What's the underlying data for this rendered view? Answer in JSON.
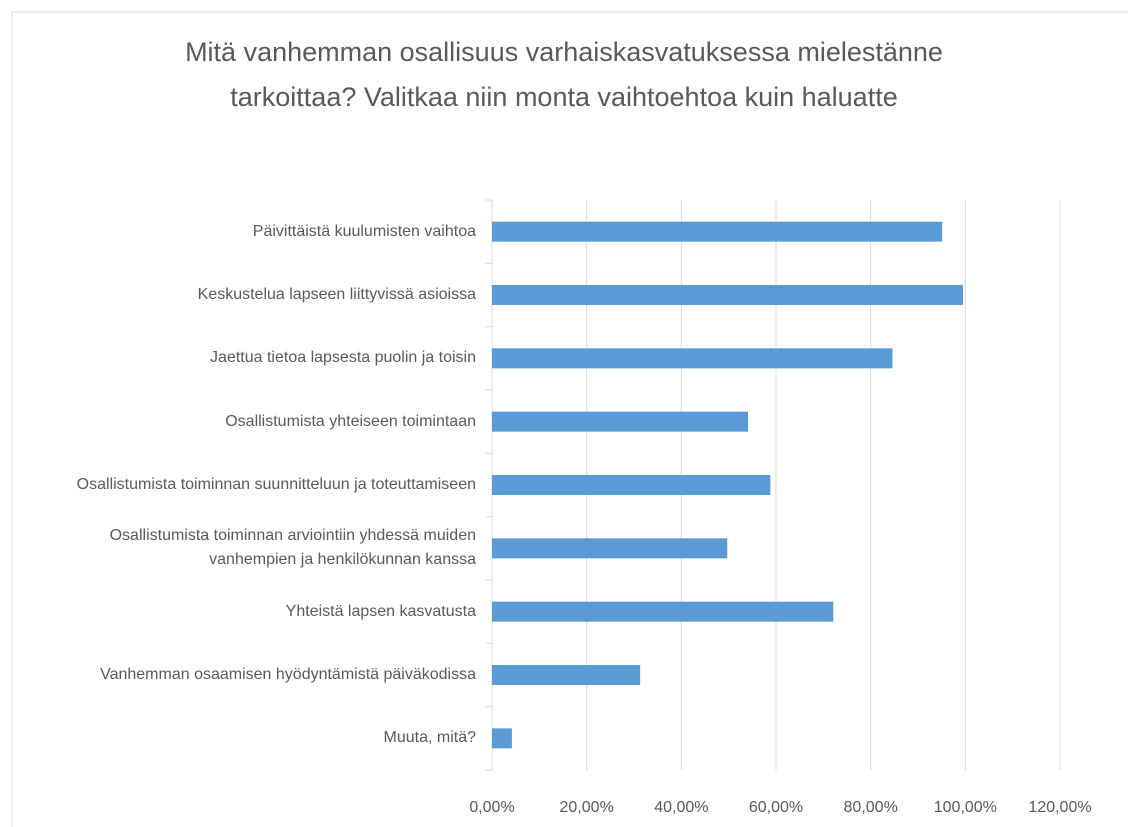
{
  "chart_data": {
    "type": "barh",
    "title": "Mitä vanhemman osallisuus varhaiskasvatuksessa mielestänne tarkoittaa? Valitkaa niin monta vaihtoehtoa kuin haluatte",
    "categories": [
      "Päivittäistä kuulumisten vaihtoa",
      "Keskustelua lapseen liittyvissä asioissa",
      "Jaettua tietoa lapsesta puolin ja toisin",
      "Osallistumista yhteiseen toimintaan",
      "Osallistumista toiminnan suunnitteluun ja toteuttamiseen",
      "Osallistumista toiminnan arviointiin yhdessä muiden vanhempien ja henkilökunnan kanssa",
      "Yhteistä lapsen kasvatusta",
      "Vanhemman osaamisen hyödyntämistä päiväkodissa",
      "Muuta, mitä?"
    ],
    "values": [
      95.1,
      99.5,
      84.6,
      54.1,
      58.8,
      49.7,
      72.1,
      31.3,
      4.2
    ],
    "color": "#5b9bd5",
    "xlim": [
      0,
      120
    ],
    "xticks": [
      {
        "value": 0,
        "label": "0,00%"
      },
      {
        "value": 20,
        "label": "20,00%"
      },
      {
        "value": 40,
        "label": "40,00%"
      },
      {
        "value": 60,
        "label": "60,00%"
      },
      {
        "value": 80,
        "label": "80,00%"
      },
      {
        "value": 100,
        "label": "100,00%"
      },
      {
        "value": 120,
        "label": "120,00%"
      }
    ],
    "grid": true
  }
}
